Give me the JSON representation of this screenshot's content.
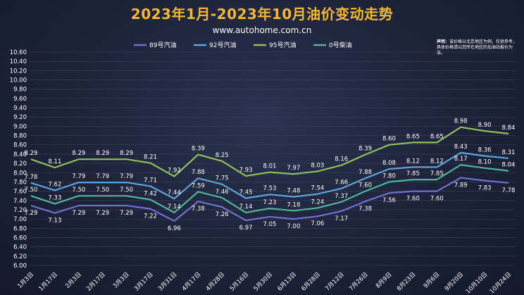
{
  "header": {
    "title": "2023年1月-2023年10月油价变动走势",
    "subtitle": "www.autohome.com.cn",
    "note_label": "声明：",
    "note_text": "该价格以北京地区为例，仅供参考，具体价格请以您所在地区的加油站报价为准。"
  },
  "chart_data": {
    "type": "line",
    "title": "2023年1月-2023年10月油价变动走势",
    "x": [
      "1月3日",
      "1月17日",
      "2月3日",
      "2月17日",
      "3月3日",
      "3月17日",
      "3月31日",
      "4月17日",
      "4月28日",
      "5月16日",
      "5月30日",
      "6月13日",
      "6月28日",
      "7月12日",
      "7月26日",
      "8月9日",
      "8月23日",
      "9月6日",
      "9月20日",
      "10月10日",
      "10月24日"
    ],
    "ylim": [
      6.0,
      10.6
    ],
    "yticks": [
      "6.00",
      "6.20",
      "6.40",
      "6.60",
      "6.80",
      "7.00",
      "7.20",
      "7.40",
      "7.60",
      "7.80",
      "8.00",
      "8.20",
      "8.40",
      "8.60",
      "8.80",
      "9.00",
      "9.20",
      "9.40",
      "9.60",
      "9.80",
      "10.00",
      "10.20",
      "10.40",
      "10.60"
    ],
    "grid": true,
    "legend_position": "top-center",
    "series": [
      {
        "name": "89号汽油",
        "color": "#6f6fd0",
        "labels_below": true,
        "values": [
          7.29,
          7.13,
          7.29,
          7.29,
          7.29,
          7.22,
          6.96,
          7.38,
          7.26,
          6.97,
          7.05,
          7.0,
          7.06,
          7.17,
          7.38,
          7.56,
          7.6,
          7.6,
          7.89,
          7.83,
          7.78
        ]
      },
      {
        "name": "92号汽油",
        "color": "#5ba3d9",
        "labels_below": false,
        "values": [
          7.78,
          7.62,
          7.79,
          7.79,
          7.79,
          7.71,
          7.44,
          7.88,
          7.75,
          7.45,
          7.53,
          7.48,
          7.54,
          7.66,
          7.88,
          8.08,
          8.12,
          8.12,
          8.43,
          8.36,
          8.31
        ]
      },
      {
        "name": "95号汽油",
        "color": "#8fbf5a",
        "labels_below": false,
        "values": [
          8.29,
          8.11,
          8.29,
          8.29,
          8.29,
          8.21,
          7.92,
          8.39,
          8.25,
          7.93,
          8.01,
          7.97,
          8.03,
          8.16,
          8.39,
          8.6,
          8.65,
          8.65,
          8.98,
          8.9,
          8.84
        ]
      },
      {
        "name": "0号柴油",
        "color": "#4fb59a",
        "labels_below": false,
        "values": [
          7.5,
          7.33,
          7.5,
          7.5,
          7.5,
          7.42,
          7.14,
          7.59,
          7.46,
          7.14,
          7.23,
          7.18,
          7.24,
          7.37,
          7.6,
          7.8,
          7.85,
          7.85,
          8.17,
          8.1,
          8.04
        ]
      }
    ]
  }
}
